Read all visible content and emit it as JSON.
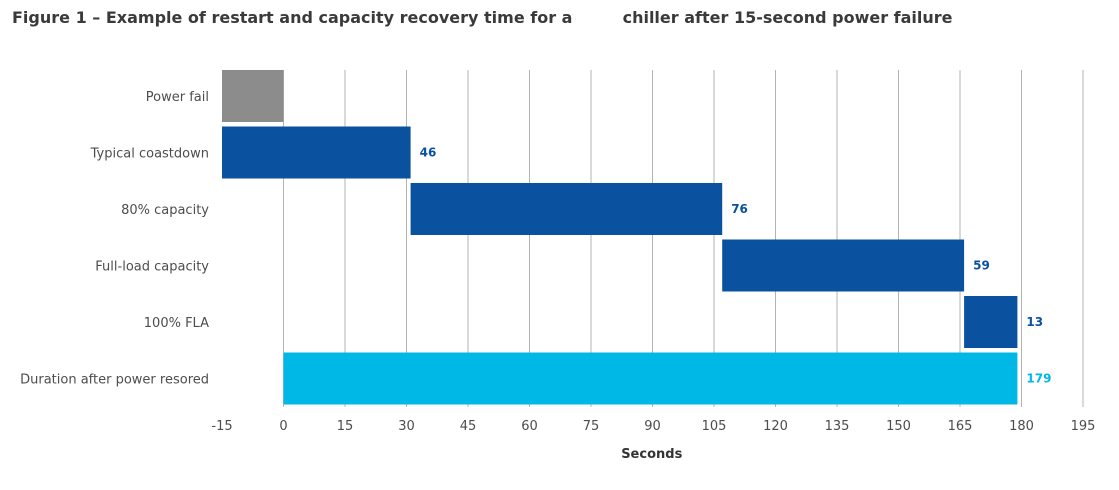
{
  "title": "Figure 1 – Example of restart and capacity recovery time for a         chiller after 15-second power failure",
  "chart_data": {
    "type": "bar",
    "orientation": "horizontal-floating",
    "categories": [
      "Power fail",
      "Typical coastdown",
      "80% capacity",
      "Full-load capacity",
      "100% FLA",
      "Duration after power resored"
    ],
    "bars": [
      {
        "category": "Power fail",
        "start": -15,
        "end": 0,
        "label": "",
        "color": "#8c8c8c"
      },
      {
        "category": "Typical coastdown",
        "start": -15,
        "end": 31,
        "label": "46",
        "color": "#0a52a0"
      },
      {
        "category": "80% capacity",
        "start": 31,
        "end": 107,
        "label": "76",
        "color": "#0a52a0"
      },
      {
        "category": "Full-load capacity",
        "start": 107,
        "end": 166,
        "label": "59",
        "color": "#0a52a0"
      },
      {
        "category": "100% FLA",
        "start": 166,
        "end": 179,
        "label": "13",
        "color": "#0a52a0"
      },
      {
        "category": "Duration after power resored",
        "start": 0,
        "end": 179,
        "label": "179",
        "color": "#00b8e6"
      }
    ],
    "xlabel": "Seconds",
    "ylabel": "",
    "xlim": [
      -15,
      195
    ],
    "xticks": [
      -15,
      0,
      15,
      30,
      45,
      60,
      75,
      90,
      105,
      120,
      135,
      150,
      165,
      180,
      195
    ],
    "grid": "vertical",
    "label_colors": {
      "dark": "#0a52a0",
      "light": "#00b8e6"
    }
  }
}
